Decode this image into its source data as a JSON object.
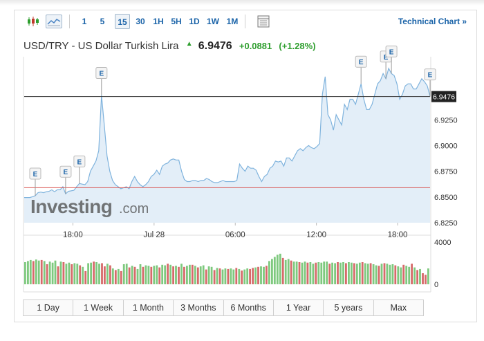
{
  "toolbar": {
    "intervals": [
      "1",
      "5",
      "15",
      "30",
      "1H",
      "5H",
      "1D",
      "1W",
      "1M"
    ],
    "active_interval": "15",
    "technical_chart_label": "Technical Chart »"
  },
  "header": {
    "name": "USD/TRY - US Dollar Turkish Lira",
    "price": "6.9476",
    "change": "+0.0881",
    "change_pct": "(+1.28%)",
    "direction_icon": "up-arrow-icon",
    "up_color": "#2e9e2e"
  },
  "watermark": {
    "brand": "Investing",
    "suffix": ".com"
  },
  "ranges": [
    "1 Day",
    "1 Week",
    "1 Month",
    "3 Months",
    "6 Months",
    "1 Year",
    "5 years",
    "Max"
  ],
  "chart_data": [
    {
      "type": "area",
      "ylim": [
        6.825,
        6.985
      ],
      "yticks": [
        "6.9250",
        "6.9000",
        "6.8750",
        "6.8500",
        "6.8250"
      ],
      "xtick_labels": [
        "18:00",
        "Jul 28",
        "06:00",
        "12:00",
        "18:00"
      ],
      "current_price_label": "6.9476",
      "current_price": 6.9476,
      "reference_level": 6.859,
      "line_color": "#7fb3dd",
      "fill_color": "#e3eef8",
      "reference_color": "#d9534f",
      "y": [
        6.8495,
        6.8495,
        6.8495,
        6.8503,
        6.8512,
        6.8542,
        6.8548,
        6.8542,
        6.8551,
        6.8555,
        6.857,
        6.8551,
        6.8571,
        6.857,
        6.86,
        6.8531,
        6.8555,
        6.856,
        6.8565,
        6.86,
        6.8631,
        6.8625,
        6.862,
        6.865,
        6.875,
        6.88,
        6.885,
        6.895,
        6.949,
        6.92,
        6.89,
        6.875,
        6.866,
        6.862,
        6.86,
        6.858,
        6.859,
        6.86,
        6.858,
        6.865,
        6.87,
        6.865,
        6.862,
        6.86,
        6.862,
        6.865,
        6.87,
        6.872,
        6.876,
        6.872,
        6.88,
        6.882,
        6.883,
        6.886,
        6.887,
        6.886,
        6.886,
        6.875,
        6.867,
        6.865,
        6.865,
        6.866,
        6.866,
        6.865,
        6.866,
        6.866,
        6.868,
        6.867,
        6.865,
        6.864,
        6.864,
        6.865,
        6.866,
        6.865,
        6.865,
        6.865,
        6.865,
        6.866,
        6.882,
        6.878,
        6.875,
        6.88,
        6.878,
        6.878,
        6.876,
        6.87,
        6.865,
        6.87,
        6.872,
        6.878,
        6.88,
        6.885,
        6.884,
        6.885,
        6.88,
        6.888,
        6.888,
        6.885,
        6.89,
        6.895,
        6.897,
        6.895,
        6.898,
        6.9,
        6.898,
        6.897,
        6.899,
        6.902,
        6.95,
        6.967,
        6.93,
        6.925,
        6.915,
        6.93,
        6.925,
        6.92,
        6.94,
        6.935,
        6.945,
        6.945,
        6.94,
        6.95,
        6.96,
        6.945,
        6.935,
        6.935,
        6.94,
        6.95,
        6.96,
        6.963,
        6.97,
        6.965,
        6.975,
        6.97,
        6.968,
        6.96,
        6.945,
        6.95,
        6.958,
        6.96,
        6.96,
        6.955,
        6.955,
        6.96,
        6.965,
        6.962,
        6.958,
        6.9476
      ],
      "events": [
        {
          "label": "E",
          "index": 4
        },
        {
          "label": "E",
          "index": 15
        },
        {
          "label": "E",
          "index": 20
        },
        {
          "label": "E",
          "index": 28
        },
        {
          "label": "E",
          "index": 122
        },
        {
          "label": "E",
          "index": 131
        },
        {
          "label": "E",
          "index": 133
        },
        {
          "label": "E",
          "index": 147
        }
      ]
    },
    {
      "type": "bar",
      "ylim": [
        0,
        4000
      ],
      "yticks": [
        "4000",
        "0"
      ],
      "up_color": "#7ec97e",
      "down_color": "#d66a6a",
      "values": [
        2100,
        2200,
        2300,
        2200,
        2350,
        2250,
        2300,
        2200,
        1900,
        2150,
        2050,
        2250,
        1700,
        2150,
        2100,
        1950,
        2050,
        1900,
        2000,
        1950,
        1800,
        1650,
        1250,
        2000,
        2050,
        2150,
        2100,
        1950,
        2000,
        1700,
        1950,
        1800,
        1500,
        1350,
        1450,
        1250,
        1900,
        1950,
        1600,
        1750,
        1650,
        1450,
        1900,
        1650,
        1800,
        1750,
        1650,
        1750,
        1800,
        1600,
        1850,
        1800,
        1950,
        1850,
        1700,
        1750,
        1650,
        1950,
        1650,
        1750,
        1850,
        1850,
        1750,
        1600,
        1700,
        1800,
        1400,
        1700,
        1650,
        1350,
        1550,
        1500,
        1400,
        1500,
        1450,
        1500,
        1400,
        1550,
        1450,
        1300,
        1400,
        1500,
        1450,
        1550,
        1600,
        1650,
        1700,
        1650,
        1750,
        2200,
        2400,
        2600,
        2800,
        2900,
        2500,
        2300,
        2400,
        2250,
        2150,
        2150,
        2100,
        2050,
        2150,
        2050,
        2100,
        1950,
        2050,
        2100,
        2050,
        2150,
        2150,
        1950,
        2050,
        2000,
        2100,
        2050,
        2100,
        2000,
        2100,
        2050,
        2000,
        1950,
        2050,
        2100,
        2000,
        1950,
        2000,
        1900,
        1800,
        1750,
        1950,
        2000,
        1950,
        1850,
        1900,
        1800,
        1700,
        1600,
        1850,
        1750,
        1650,
        1950,
        1600,
        1350,
        1450,
        1050,
        900,
        1500
      ],
      "up": [
        1,
        1,
        1,
        0,
        1,
        1,
        0,
        1,
        0,
        1,
        1,
        1,
        0,
        1,
        0,
        1,
        1,
        0,
        1,
        1,
        0,
        1,
        0,
        1,
        1,
        0,
        1,
        1,
        0,
        0,
        1,
        0,
        1,
        0,
        1,
        0,
        1,
        1,
        0,
        1,
        0,
        1,
        1,
        0,
        1,
        1,
        0,
        1,
        1,
        0,
        1,
        1,
        0,
        1,
        0,
        1,
        0,
        1,
        0,
        1,
        1,
        0,
        1,
        0,
        1,
        1,
        0,
        1,
        1,
        0,
        1,
        0,
        1,
        1,
        0,
        1,
        1,
        0,
        1,
        0,
        1,
        1,
        0,
        0,
        1,
        0,
        1,
        1,
        0,
        1,
        1,
        1,
        1,
        1,
        0,
        1,
        1,
        0,
        1,
        1,
        0,
        1,
        1,
        0,
        1,
        1,
        0,
        1,
        1,
        1,
        1,
        0,
        1,
        1,
        0,
        1,
        1,
        0,
        1,
        1,
        0,
        1,
        1,
        0,
        1,
        1,
        0,
        1,
        1,
        0,
        1,
        0,
        1,
        1,
        1,
        0,
        1,
        1,
        0,
        1,
        1,
        0,
        1,
        0,
        1,
        0,
        0,
        1
      ]
    }
  ]
}
